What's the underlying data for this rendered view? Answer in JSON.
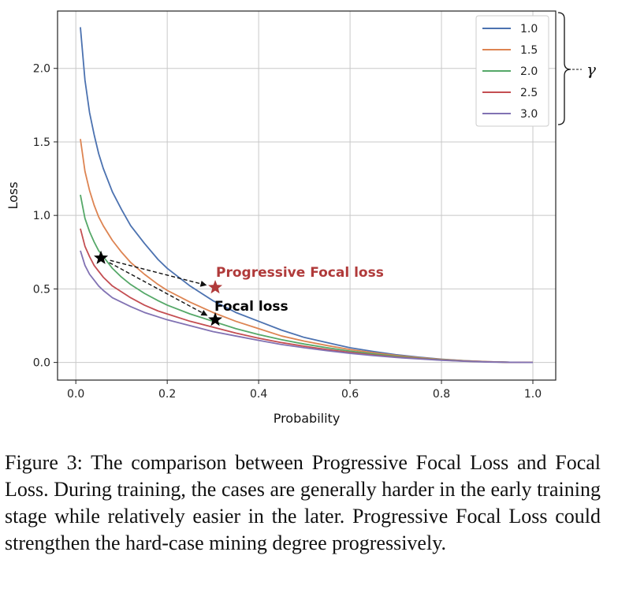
{
  "chart_data": {
    "type": "line",
    "xlabel": "Probability",
    "ylabel": "Loss",
    "xlim": [
      -0.04,
      1.05
    ],
    "ylim": [
      -0.12,
      2.39
    ],
    "xticks": [
      0.0,
      0.2,
      0.4,
      0.6,
      0.8,
      1.0
    ],
    "xtick_labels": [
      "0.0",
      "0.2",
      "0.4",
      "0.6",
      "0.8",
      "1.0"
    ],
    "yticks": [
      0.0,
      0.5,
      1.0,
      1.5,
      2.0
    ],
    "ytick_labels": [
      "0.0",
      "0.5",
      "1.0",
      "1.5",
      "2.0"
    ],
    "grid": true,
    "legend_position": "top-right",
    "legend_title": "",
    "x": [
      0.01,
      0.02,
      0.03,
      0.04,
      0.05,
      0.06,
      0.08,
      0.1,
      0.12,
      0.15,
      0.18,
      0.2,
      0.25,
      0.3,
      0.35,
      0.4,
      0.45,
      0.5,
      0.55,
      0.6,
      0.65,
      0.7,
      0.75,
      0.8,
      0.85,
      0.9,
      0.95,
      1.0
    ],
    "series": [
      {
        "name": "1.0",
        "color": "#4c72b0",
        "values": [
          2.28,
          1.92,
          1.7,
          1.55,
          1.42,
          1.32,
          1.16,
          1.04,
          0.93,
          0.81,
          0.7,
          0.64,
          0.52,
          0.42,
          0.34,
          0.28,
          0.22,
          0.17,
          0.135,
          0.1,
          0.075,
          0.053,
          0.036,
          0.022,
          0.012,
          0.005,
          0.001,
          0.0
        ]
      },
      {
        "name": "1.5",
        "color": "#dd8452",
        "values": [
          1.52,
          1.3,
          1.17,
          1.07,
          0.99,
          0.93,
          0.83,
          0.75,
          0.68,
          0.6,
          0.53,
          0.49,
          0.41,
          0.34,
          0.28,
          0.23,
          0.18,
          0.145,
          0.115,
          0.088,
          0.066,
          0.048,
          0.033,
          0.021,
          0.011,
          0.005,
          0.001,
          0.0
        ]
      },
      {
        "name": "2.0",
        "color": "#55a868",
        "values": [
          1.14,
          0.98,
          0.89,
          0.82,
          0.76,
          0.72,
          0.64,
          0.58,
          0.53,
          0.47,
          0.42,
          0.39,
          0.33,
          0.28,
          0.23,
          0.19,
          0.155,
          0.125,
          0.1,
          0.077,
          0.058,
          0.042,
          0.029,
          0.018,
          0.01,
          0.004,
          0.001,
          0.0
        ]
      },
      {
        "name": "2.5",
        "color": "#c44e52",
        "values": [
          0.91,
          0.79,
          0.72,
          0.66,
          0.62,
          0.58,
          0.52,
          0.48,
          0.44,
          0.39,
          0.35,
          0.33,
          0.28,
          0.24,
          0.2,
          0.165,
          0.135,
          0.11,
          0.088,
          0.068,
          0.051,
          0.037,
          0.026,
          0.016,
          0.009,
          0.004,
          0.001,
          0.0
        ]
      },
      {
        "name": "3.0",
        "color": "#8172b3",
        "values": [
          0.76,
          0.66,
          0.6,
          0.56,
          0.52,
          0.49,
          0.44,
          0.41,
          0.38,
          0.34,
          0.31,
          0.29,
          0.25,
          0.21,
          0.18,
          0.15,
          0.122,
          0.1,
          0.08,
          0.062,
          0.047,
          0.034,
          0.024,
          0.015,
          0.008,
          0.003,
          0.001,
          0.0
        ]
      }
    ],
    "annotations": [
      {
        "text": "Progressive Focal loss",
        "color": "#b03a3a"
      },
      {
        "text": "Focal loss",
        "color": "#000000"
      }
    ],
    "markers": [
      {
        "name": "start",
        "x": 0.055,
        "y": 0.71,
        "color": "#000000"
      },
      {
        "name": "progressive-focal",
        "x": 0.305,
        "y": 0.51,
        "color": "#b03a3a"
      },
      {
        "name": "focal",
        "x": 0.305,
        "y": 0.29,
        "color": "#000000"
      }
    ],
    "brace_label": "γ"
  },
  "caption": "Figure 3: The comparison between Progressive Focal Loss and Focal Loss. During training, the cases are generally harder in the early training stage while relatively easier in the later. Progressive Focal Loss could strengthen the hard-case mining degree progressively."
}
